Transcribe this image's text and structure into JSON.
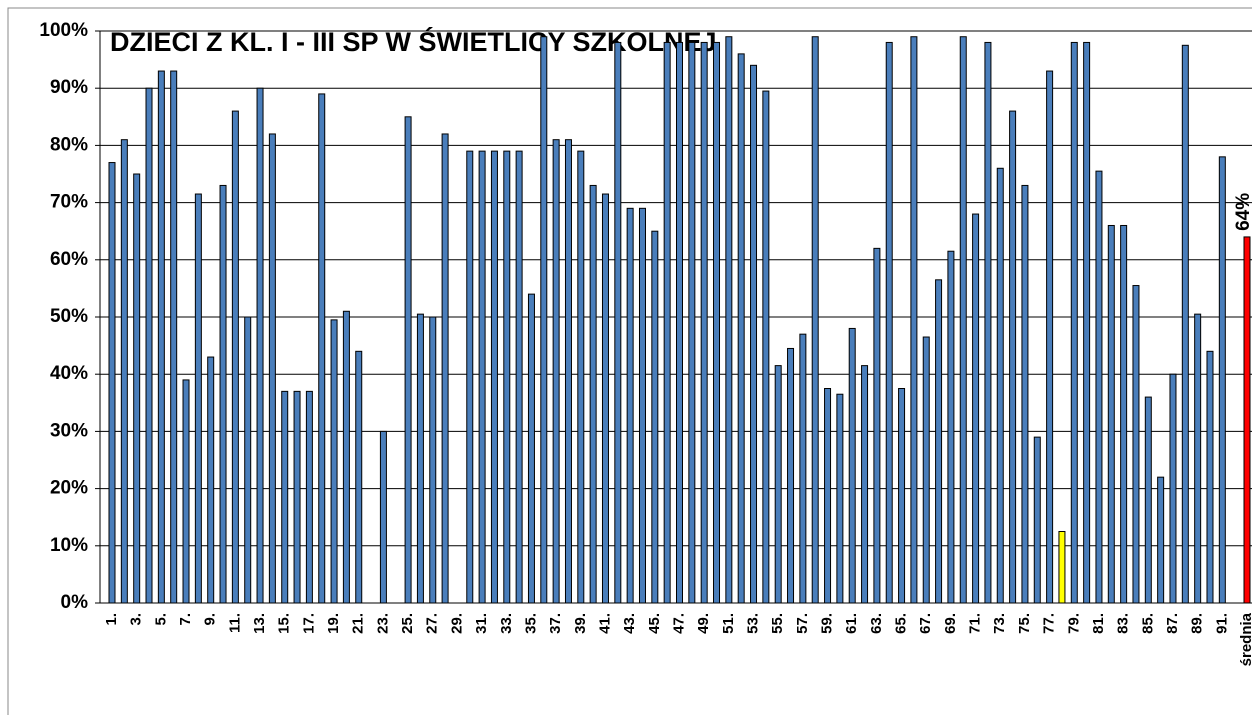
{
  "chart_data": {
    "type": "bar",
    "title": "DZIECI Z KL. I - III SP W ŚWIETLICY SZKOLNEJ",
    "categories": [
      "1.",
      null,
      "3.",
      null,
      "5.",
      null,
      "7.",
      null,
      "9.",
      null,
      "11.",
      null,
      "13.",
      null,
      "15.",
      null,
      "17.",
      null,
      "19.",
      null,
      "21.",
      null,
      "23.",
      null,
      "25.",
      null,
      "27.",
      null,
      "29.",
      null,
      "31.",
      null,
      "33.",
      null,
      "35.",
      null,
      "37.",
      null,
      "39.",
      null,
      "41.",
      null,
      "43.",
      null,
      "45.",
      null,
      "47.",
      null,
      "49.",
      null,
      "51.",
      null,
      "53.",
      null,
      "55.",
      null,
      "57.",
      null,
      "59.",
      null,
      "61.",
      null,
      "63.",
      null,
      "65.",
      null,
      "67.",
      null,
      "69.",
      null,
      "71.",
      null,
      "73.",
      null,
      "75.",
      null,
      "77.",
      null,
      "79.",
      null,
      "81.",
      null,
      "83.",
      null,
      "85.",
      null,
      "87.",
      null,
      "89.",
      null,
      "91.",
      null,
      "średnia"
    ],
    "values": [
      77,
      81,
      75,
      90,
      93,
      93,
      39,
      71.5,
      43,
      73,
      86,
      50,
      90,
      82,
      37,
      37,
      37,
      89,
      49.5,
      51,
      44,
      0,
      30,
      0,
      85,
      50.5,
      50,
      82,
      0,
      79,
      79,
      79,
      79,
      79,
      54,
      99,
      81,
      81,
      79,
      73,
      71.5,
      98,
      69,
      69,
      65,
      98,
      98,
      98,
      98,
      98,
      99,
      96,
      94,
      89.5,
      41.5,
      44.5,
      47,
      99,
      37.5,
      36.5,
      48,
      41.5,
      62,
      98,
      37.5,
      99,
      46.5,
      56.5,
      61.5,
      99,
      68,
      98,
      76,
      86,
      73,
      29,
      93,
      12.5,
      98,
      98,
      75.5,
      66,
      66,
      55.5,
      36,
      22,
      40,
      97.5,
      50.5,
      44,
      78,
      null,
      64
    ],
    "value_labels": [
      null,
      null,
      null,
      null,
      null,
      null,
      null,
      null,
      null,
      null,
      null,
      null,
      null,
      null,
      null,
      null,
      null,
      null,
      null,
      null,
      null,
      null,
      null,
      null,
      null,
      null,
      null,
      null,
      null,
      null,
      null,
      null,
      null,
      null,
      null,
      null,
      null,
      null,
      null,
      null,
      null,
      null,
      null,
      null,
      null,
      null,
      null,
      null,
      null,
      null,
      null,
      null,
      null,
      null,
      null,
      null,
      null,
      null,
      null,
      null,
      null,
      null,
      null,
      null,
      null,
      null,
      null,
      null,
      null,
      null,
      null,
      null,
      null,
      null,
      null,
      null,
      null,
      null,
      null,
      null,
      null,
      null,
      null,
      null,
      null,
      null,
      null,
      null,
      null,
      null,
      null,
      null,
      "64%"
    ],
    "color": "#4a7ebb",
    "colors": {
      "77": "#ffff00",
      "92": "#ff0000"
    },
    "ylim": [
      0,
      100
    ],
    "yticks": [
      {
        "value": 0,
        "label": "0%"
      },
      {
        "value": 10,
        "label": "10%"
      },
      {
        "value": 20,
        "label": "20%"
      },
      {
        "value": 30,
        "label": "30%"
      },
      {
        "value": 40,
        "label": "40%"
      },
      {
        "value": 50,
        "label": "50%"
      },
      {
        "value": 60,
        "label": "60%"
      },
      {
        "value": 70,
        "label": "70%"
      },
      {
        "value": 80,
        "label": "80%"
      },
      {
        "value": 90,
        "label": "90%"
      },
      {
        "value": 100,
        "label": "100%"
      }
    ],
    "grid": true
  }
}
